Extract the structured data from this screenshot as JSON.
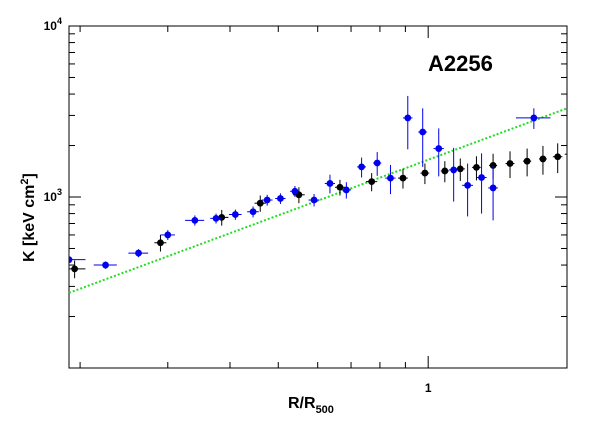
{
  "chart_data": {
    "type": "scatter",
    "title": "",
    "annotation": "A2256",
    "xlabel": {
      "main": "R/R",
      "sub": "500"
    },
    "ylabel": {
      "main": "K [keV cm",
      "sup": "2",
      "end": "]"
    },
    "xscale": "log",
    "yscale": "log",
    "xlim": [
      0.19,
      1.9
    ],
    "ylim": [
      100,
      10000
    ],
    "grid": false,
    "legend": "none",
    "x_tick_labels": [
      {
        "value": 1,
        "text": "1"
      }
    ],
    "y_tick_labels": [
      {
        "value": 1000,
        "base": "10",
        "exp": "3"
      },
      {
        "value": 10000,
        "base": "10",
        "exp": "4"
      }
    ],
    "colors": {
      "series_black": "#000000",
      "series_blue": "#0000ee",
      "fit_line": "#22dd22"
    },
    "series": [
      {
        "color_key": "series_black",
        "points": [
          {
            "x": 0.195,
            "y": 380,
            "xerr": 0.01,
            "yerr": 45
          },
          {
            "x": 0.29,
            "y": 540,
            "xerr": 0.008,
            "yerr": 60
          },
          {
            "x": 0.385,
            "y": 760,
            "xerr": 0.012,
            "yerr": 80
          },
          {
            "x": 0.46,
            "y": 920,
            "xerr": 0.012,
            "yerr": 100
          },
          {
            "x": 0.55,
            "y": 1030,
            "xerr": 0.015,
            "yerr": 110
          },
          {
            "x": 0.665,
            "y": 1140,
            "xerr": 0.015,
            "yerr": 120
          },
          {
            "x": 0.77,
            "y": 1230,
            "xerr": 0.02,
            "yerr": 150
          },
          {
            "x": 0.89,
            "y": 1290,
            "xerr": 0.02,
            "yerr": 170
          },
          {
            "x": 0.985,
            "y": 1380,
            "xerr": 0.02,
            "yerr": 190
          },
          {
            "x": 1.08,
            "y": 1420,
            "xerr": 0.02,
            "yerr": 200
          },
          {
            "x": 1.16,
            "y": 1460,
            "xerr": 0.025,
            "yerr": 220
          },
          {
            "x": 1.25,
            "y": 1490,
            "xerr": 0.025,
            "yerr": 240
          },
          {
            "x": 1.35,
            "y": 1530,
            "xerr": 0.025,
            "yerr": 260
          },
          {
            "x": 1.46,
            "y": 1570,
            "xerr": 0.03,
            "yerr": 280
          },
          {
            "x": 1.58,
            "y": 1620,
            "xerr": 0.03,
            "yerr": 300
          },
          {
            "x": 1.7,
            "y": 1670,
            "xerr": 0.03,
            "yerr": 320
          },
          {
            "x": 1.82,
            "y": 1720,
            "xerr": 0.04,
            "yerr": 340
          },
          {
            "x": 1.93,
            "y": 1780,
            "xerr": 0.05,
            "yerr": 360
          }
        ]
      },
      {
        "color_key": "series_blue",
        "points": [
          {
            "x": 0.19,
            "y": 430,
            "xerr": 0.015,
            "yerr": 40
          },
          {
            "x": 0.225,
            "y": 400,
            "xerr": 0.012,
            "yerr": 20
          },
          {
            "x": 0.262,
            "y": 470,
            "xerr": 0.012,
            "yerr": 25
          },
          {
            "x": 0.3,
            "y": 600,
            "xerr": 0.01,
            "yerr": 40
          },
          {
            "x": 0.34,
            "y": 730,
            "xerr": 0.015,
            "yerr": 50
          },
          {
            "x": 0.375,
            "y": 750,
            "xerr": 0.01,
            "yerr": 50
          },
          {
            "x": 0.41,
            "y": 790,
            "xerr": 0.012,
            "yerr": 55
          },
          {
            "x": 0.445,
            "y": 820,
            "xerr": 0.012,
            "yerr": 60
          },
          {
            "x": 0.475,
            "y": 960,
            "xerr": 0.012,
            "yerr": 70
          },
          {
            "x": 0.505,
            "y": 980,
            "xerr": 0.012,
            "yerr": 70
          },
          {
            "x": 0.54,
            "y": 1080,
            "xerr": 0.012,
            "yerr": 80
          },
          {
            "x": 0.59,
            "y": 960,
            "xerr": 0.015,
            "yerr": 80
          },
          {
            "x": 0.635,
            "y": 1200,
            "xerr": 0.015,
            "yerr": 150
          },
          {
            "x": 0.685,
            "y": 1100,
            "xerr": 0.015,
            "yerr": 120
          },
          {
            "x": 0.735,
            "y": 1500,
            "xerr": 0.015,
            "yerr": 200
          },
          {
            "x": 0.79,
            "y": 1580,
            "xerr": 0.015,
            "yerr": 250
          },
          {
            "x": 0.84,
            "y": 1290,
            "xerr": 0.02,
            "yerr": 250
          },
          {
            "x": 0.91,
            "y": 2900,
            "xerr": 0.02,
            "yerr": 1000
          },
          {
            "x": 0.975,
            "y": 2400,
            "xerr": 0.02,
            "yerr": 900
          },
          {
            "x": 1.05,
            "y": 1920,
            "xerr": 0.025,
            "yerr": 600
          },
          {
            "x": 1.125,
            "y": 1440,
            "xerr": 0.025,
            "yerr": 500
          },
          {
            "x": 1.2,
            "y": 1170,
            "xerr": 0.03,
            "yerr": 400
          },
          {
            "x": 1.28,
            "y": 1300,
            "xerr": 0.03,
            "yerr": 500
          },
          {
            "x": 1.35,
            "y": 1130,
            "xerr": 0.03,
            "yerr": 400
          },
          {
            "x": 1.63,
            "y": 2900,
            "xerr": 0.13,
            "yerr": 400
          }
        ]
      }
    ],
    "fit_line": {
      "color_key": "fit_line",
      "style": "dotted",
      "x": [
        0.19,
        1.9
      ],
      "y": [
        275,
        3300
      ]
    }
  }
}
